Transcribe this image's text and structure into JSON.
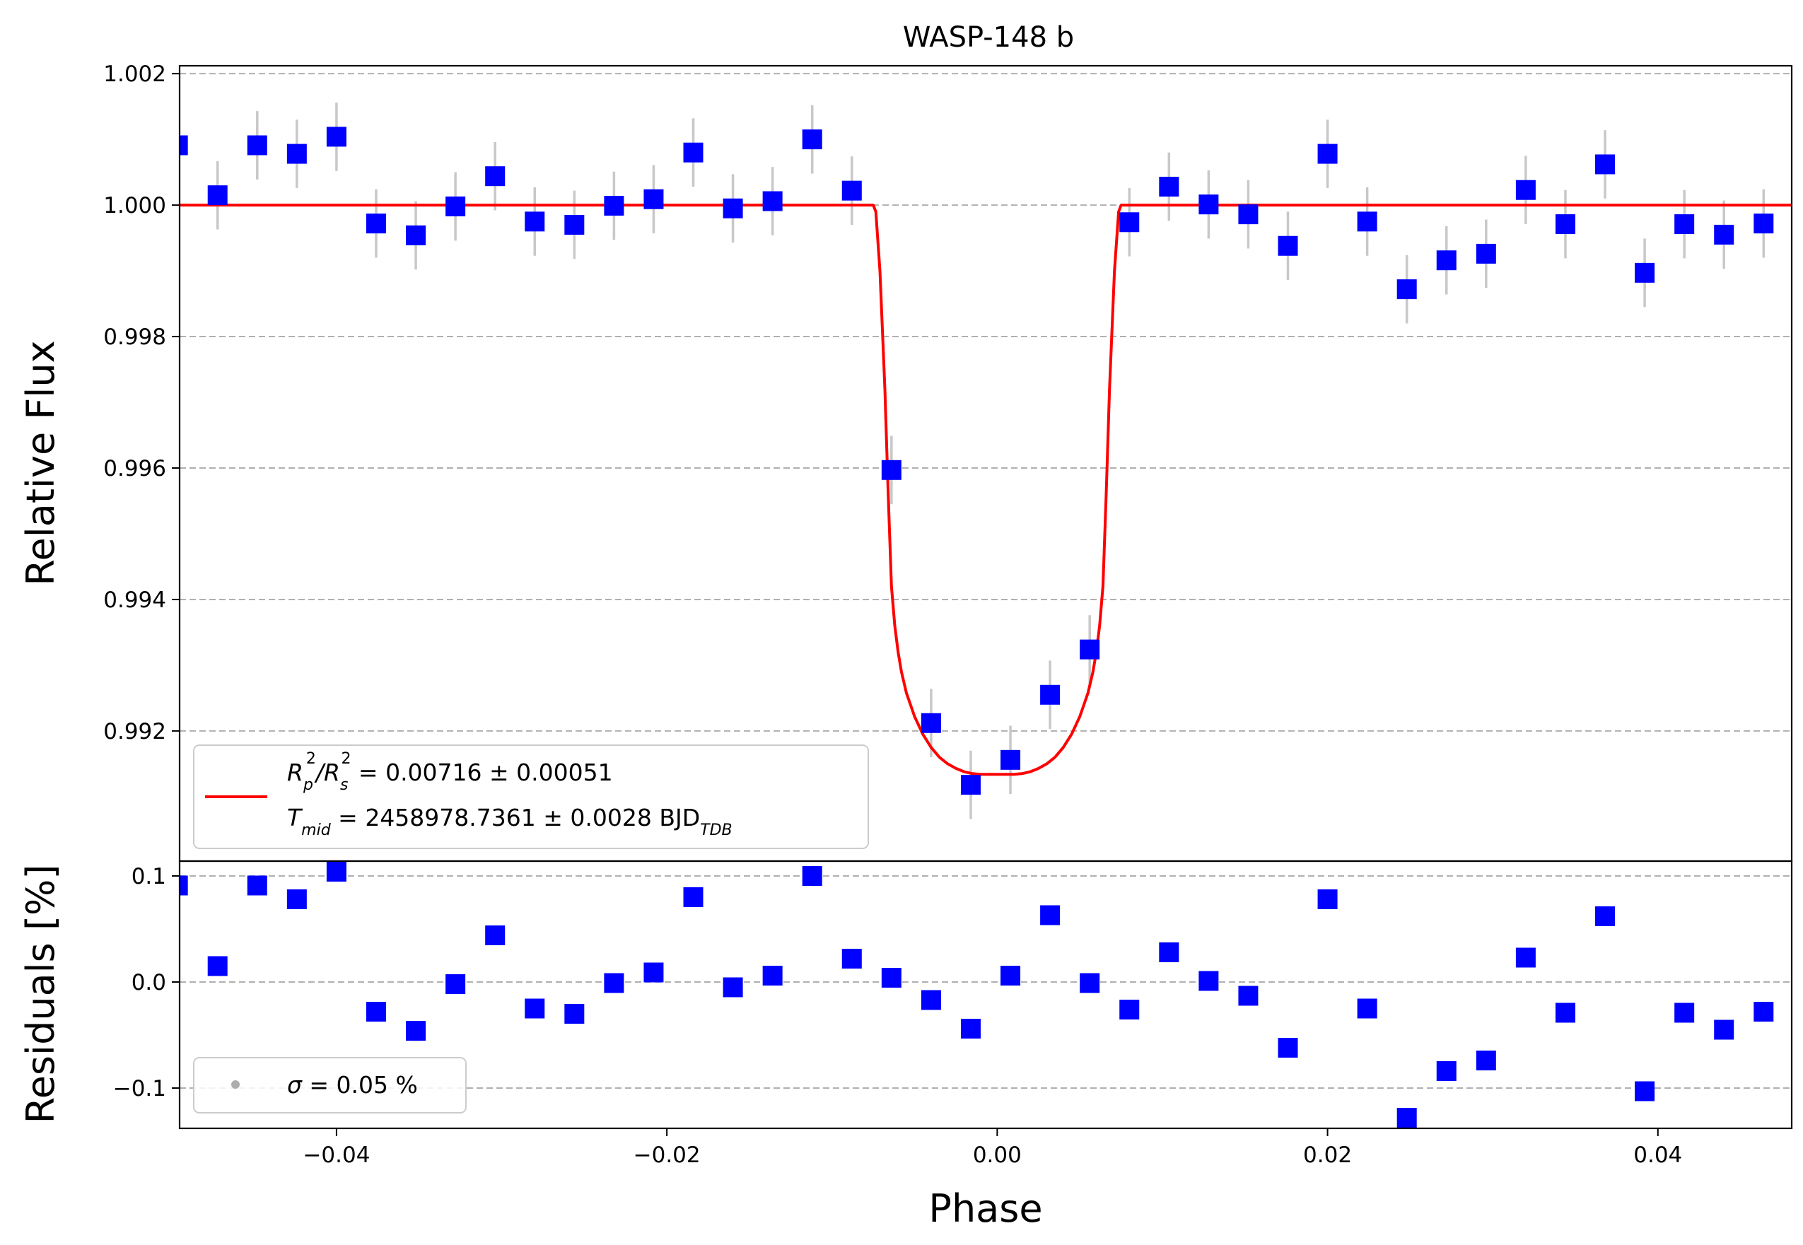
{
  "chart_data": [
    {
      "type": "scatter",
      "panel": "main",
      "title": "WASP-148 b",
      "xlabel": "",
      "ylabel": "Relative Flux",
      "xlim": [
        -0.0495,
        0.0481
      ],
      "ylim": [
        0.99002,
        1.00212
      ],
      "y_ticks": [
        "0.992",
        "0.994",
        "0.996",
        "0.998",
        "1.000",
        "1.002"
      ],
      "y_tick_values": [
        0.992,
        0.994,
        0.996,
        0.998,
        1.0,
        1.002
      ],
      "grid": "horizontal dashed",
      "legend_position": "lower-left",
      "legend": {
        "line1": {
          "a": "R",
          "a_sub": "p",
          "a_sup": "2",
          "sep": "/",
          "b": "R",
          "b_sub": "s",
          "b_sup": "2",
          "rest": " = 0.00716 ± 0.00051"
        },
        "line2": {
          "a": "T",
          "a_sub": "mid",
          "rest": " = 2458978.7361 ± 0.0028 BJD",
          "unit_sub": "TDB"
        }
      },
      "series": [
        {
          "kind": "binned-data",
          "color": "#0000ff",
          "error_color": "#c8c8c8",
          "x": [
            -0.0496,
            -0.0472,
            -0.0448,
            -0.0424,
            -0.04,
            -0.0376,
            -0.0352,
            -0.0328,
            -0.0304,
            -0.028,
            -0.0256,
            -0.0232,
            -0.0208,
            -0.0184,
            -0.016,
            -0.0136,
            -0.0112,
            -0.0088,
            -0.0064,
            -0.004,
            -0.0016,
            0.0008,
            0.0032,
            0.0056,
            0.008,
            0.0104,
            0.0128,
            0.0152,
            0.0176,
            0.02,
            0.0224,
            0.0248,
            0.0272,
            0.0296,
            0.032,
            0.0344,
            0.0368,
            0.0392,
            0.0416,
            0.044,
            0.0464
          ],
          "y": [
            1.00091,
            1.00015,
            1.00091,
            1.00078,
            1.00104,
            0.99972,
            0.99954,
            0.99998,
            1.00044,
            0.99975,
            0.9997,
            0.99999,
            1.00009,
            1.0008,
            0.99995,
            1.00006,
            1.001,
            1.00022,
            0.99597,
            0.99212,
            0.99118,
            0.99156,
            0.99255,
            0.99324,
            0.99974,
            1.00028,
            1.00001,
            0.99986,
            0.99938,
            1.00078,
            0.99975,
            0.99872,
            0.99916,
            0.99926,
            1.00023,
            0.99971,
            1.00062,
            0.99897,
            0.99971,
            0.99955,
            0.99972
          ],
          "yerr": [
            0.00052,
            0.00052,
            0.00052,
            0.00052,
            0.00052,
            0.00052,
            0.00052,
            0.00052,
            0.00052,
            0.00052,
            0.00052,
            0.00052,
            0.00052,
            0.00052,
            0.00052,
            0.00052,
            0.00052,
            0.00052,
            0.00052,
            0.00052,
            0.00052,
            0.00052,
            0.00052,
            0.00052,
            0.00052,
            0.00052,
            0.00052,
            0.00052,
            0.00052,
            0.00052,
            0.00052,
            0.00052,
            0.00052,
            0.00052,
            0.00052,
            0.00052,
            0.00052,
            0.00052,
            0.00052,
            0.00052,
            0.00052
          ]
        },
        {
          "kind": "model",
          "color": "#ff0000",
          "x": [
            -0.0495,
            -0.0075,
            -0.00735,
            -0.0071,
            -0.0068,
            -0.0066,
            -0.0064,
            -0.0062,
            -0.006,
            -0.0058,
            -0.0055,
            -0.005,
            -0.0045,
            -0.004,
            -0.0035,
            -0.003,
            -0.0025,
            -0.002,
            -0.0015,
            -0.001,
            -0.0005,
            0.0,
            0.0005,
            0.001,
            0.0015,
            0.002,
            0.0025,
            0.003,
            0.0035,
            0.004,
            0.0045,
            0.005,
            0.0055,
            0.0058,
            0.006,
            0.0062,
            0.0064,
            0.0066,
            0.0068,
            0.0071,
            0.00735,
            0.0075,
            0.0481
          ],
          "y": [
            1.0,
            1.0,
            0.9999,
            0.999,
            0.9972,
            0.9956,
            0.9942,
            0.9936,
            0.9932,
            0.9929,
            0.99258,
            0.99222,
            0.99195,
            0.99175,
            0.9916,
            0.9915,
            0.99143,
            0.99138,
            0.99135,
            0.99134,
            0.99134,
            0.99134,
            0.99134,
            0.99134,
            0.99135,
            0.99138,
            0.99143,
            0.9915,
            0.9916,
            0.99175,
            0.99195,
            0.99222,
            0.99258,
            0.9929,
            0.9932,
            0.9936,
            0.9942,
            0.9956,
            0.9972,
            0.999,
            0.9999,
            1.0,
            1.0
          ]
        }
      ],
      "edge_point": {
        "x": 0.0484,
        "y": 0.9996,
        "color": "#999999"
      }
    },
    {
      "type": "scatter",
      "panel": "residuals",
      "xlabel": "Phase",
      "ylabel": "Residuals [%]",
      "xlim": [
        -0.0495,
        0.0481
      ],
      "ylim": [
        -0.138,
        0.114
      ],
      "x_ticks": [
        "−0.04",
        "−0.02",
        "0.00",
        "0.02",
        "0.04"
      ],
      "x_tick_values": [
        -0.04,
        -0.02,
        0.0,
        0.02,
        0.04
      ],
      "y_ticks": [
        "−0.1",
        "0.0",
        "0.1"
      ],
      "y_tick_values": [
        -0.1,
        0.0,
        0.1
      ],
      "grid": "horizontal dashed",
      "legend_position": "lower-left",
      "legend": {
        "sym": "σ",
        "rest": " = 0.05 %"
      },
      "series": [
        {
          "kind": "residuals",
          "color": "#0000ff",
          "x": [
            -0.0496,
            -0.0472,
            -0.0448,
            -0.0424,
            -0.04,
            -0.0376,
            -0.0352,
            -0.0328,
            -0.0304,
            -0.028,
            -0.0256,
            -0.0232,
            -0.0208,
            -0.0184,
            -0.016,
            -0.0136,
            -0.0112,
            -0.0088,
            -0.0064,
            -0.004,
            -0.0016,
            0.0008,
            0.0032,
            0.0056,
            0.008,
            0.0104,
            0.0128,
            0.0152,
            0.0176,
            0.02,
            0.0224,
            0.0248,
            0.0272,
            0.0296,
            0.032,
            0.0344,
            0.0368,
            0.0392,
            0.0416,
            0.044,
            0.0464
          ],
          "y": [
            0.091,
            0.015,
            0.091,
            0.078,
            0.104,
            -0.028,
            -0.046,
            -0.002,
            0.044,
            -0.025,
            -0.03,
            -0.001,
            0.009,
            0.08,
            -0.005,
            0.006,
            0.1,
            0.022,
            0.004,
            -0.017,
            -0.044,
            0.006,
            0.063,
            -0.001,
            -0.026,
            0.028,
            0.001,
            -0.013,
            -0.062,
            0.078,
            -0.025,
            -0.128,
            -0.084,
            -0.074,
            0.023,
            -0.029,
            0.062,
            -0.103,
            -0.029,
            -0.045,
            -0.028
          ]
        }
      ],
      "edge_point": {
        "x": 0.0484,
        "y": -0.04,
        "color": "#999999"
      }
    }
  ]
}
